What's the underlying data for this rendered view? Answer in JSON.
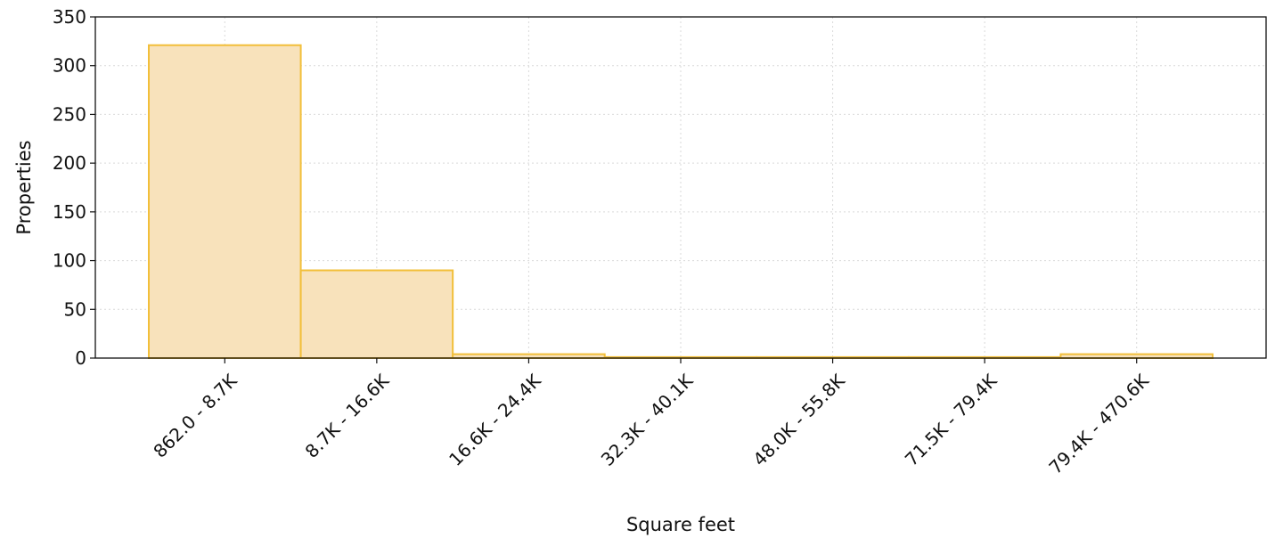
{
  "chart_data": {
    "type": "bar",
    "title": "",
    "xlabel": "Square feet",
    "ylabel": "Properties",
    "categories": [
      "862.0 - 8.7K",
      "8.7K - 16.6K",
      "16.6K - 24.4K",
      "32.3K - 40.1K",
      "48.0K - 55.8K",
      "71.5K - 79.4K",
      "79.4K - 470.6K"
    ],
    "values": [
      321,
      90,
      4,
      1,
      1,
      1,
      4
    ],
    "ylim": [
      0,
      350
    ],
    "yticks": [
      "0",
      "50",
      "100",
      "150",
      "200",
      "250",
      "300",
      "350"
    ],
    "grid": true,
    "legend": "none",
    "colors": {
      "bar_fill": "#f8e2bb",
      "bar_edge": "#f2bf3a",
      "axis": "#111111",
      "grid": "#d9d9d9"
    }
  }
}
